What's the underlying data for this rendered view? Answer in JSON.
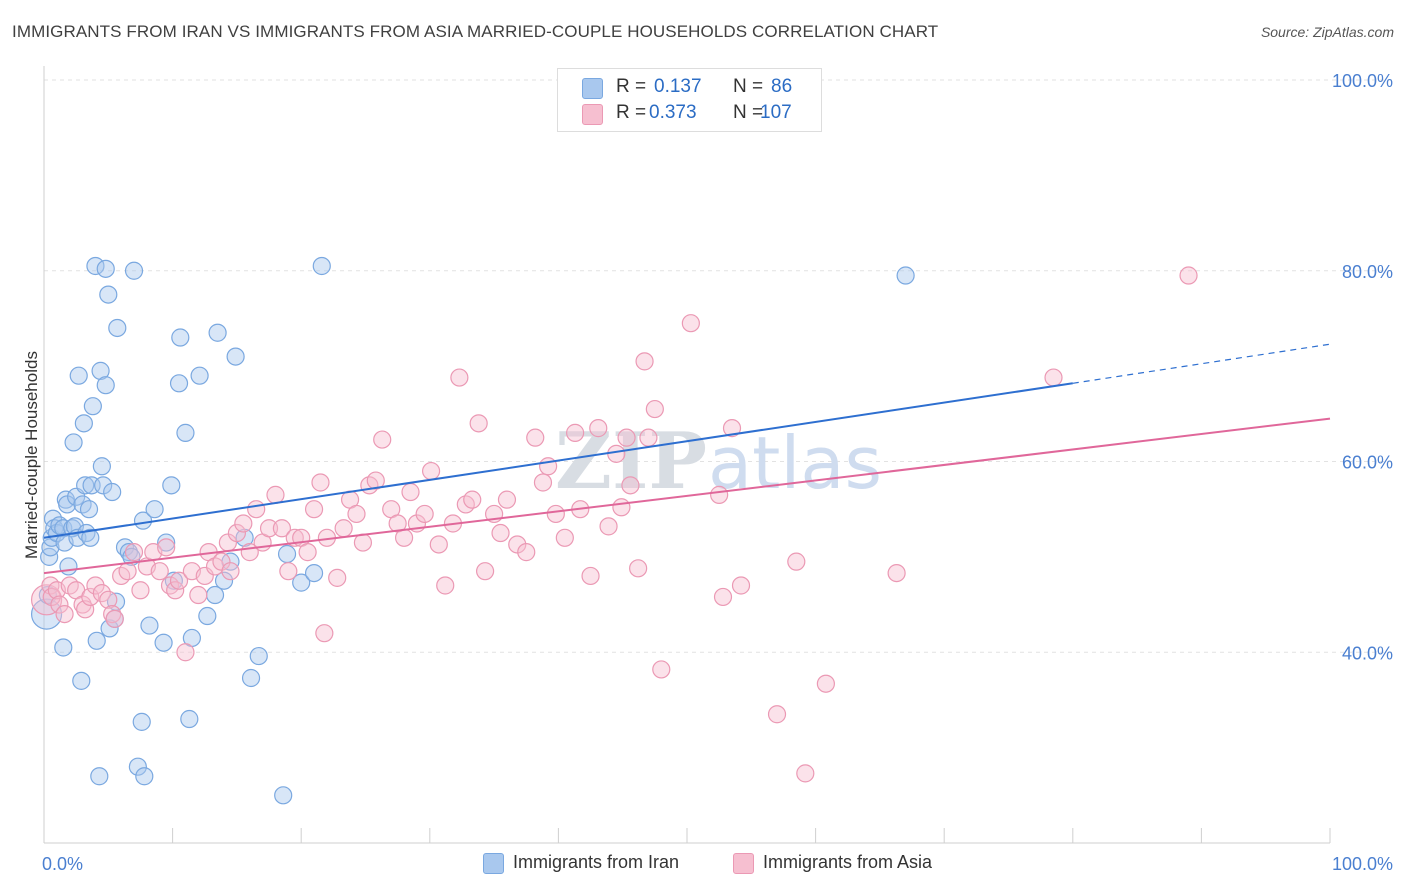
{
  "title": "IMMIGRANTS FROM IRAN VS IMMIGRANTS FROM ASIA MARRIED-COUPLE HOUSEHOLDS CORRELATION CHART",
  "source": "Source: ZipAtlas.com",
  "colors": {
    "blue_fill": "#a9c8ee",
    "blue_stroke": "#7aa8e0",
    "blue_line": "#2e6fd0",
    "pink_fill": "#f6bfd0",
    "pink_stroke": "#eb99b4",
    "pink_line": "#e0679a",
    "tick_text": "#4a7fd0"
  },
  "legend": {
    "rows": [
      {
        "r_label": "R =",
        "r_value": "0.137",
        "n_label": "N =",
        "n_value": "86"
      },
      {
        "r_label": "R =",
        "r_value": "0.373",
        "n_label": "N =",
        "n_value": "107"
      }
    ]
  },
  "bottom_legend": {
    "series1": "Immigrants from Iran",
    "series2": "Immigrants from Asia"
  },
  "watermark": {
    "zip": "ZIP",
    "atlas": "atlas"
  },
  "chart_data": {
    "type": "scatter",
    "ylabel": "Married-couple Households",
    "xlim": [
      0,
      100
    ],
    "ylim": [
      20,
      100
    ],
    "x_tick_labels": [
      "0.0%",
      "100.0%"
    ],
    "y_ticks": [
      {
        "value": 100,
        "label": "100.0%"
      },
      {
        "value": 80,
        "label": "80.0%"
      },
      {
        "value": 60,
        "label": "60.0%"
      },
      {
        "value": 40,
        "label": "40.0%"
      }
    ],
    "series": [
      {
        "name": "Immigrants from Iran",
        "trend": {
          "x0": 0,
          "y0": 52.0,
          "x1": 80,
          "y1": 68.2,
          "dash_to_x": 100,
          "dash_to_y": 72.3
        },
        "points": [
          [
            0.2,
            44.0
          ],
          [
            0.3,
            46.0
          ],
          [
            0.4,
            50.0
          ],
          [
            0.5,
            51.0
          ],
          [
            0.6,
            52.0
          ],
          [
            0.7,
            54.0
          ],
          [
            0.8,
            53.0
          ],
          [
            1.0,
            52.5
          ],
          [
            1.2,
            53.3
          ],
          [
            1.5,
            53.0
          ],
          [
            1.5,
            40.5
          ],
          [
            1.6,
            51.5
          ],
          [
            1.7,
            56.0
          ],
          [
            1.8,
            55.5
          ],
          [
            1.9,
            49.0
          ],
          [
            2.2,
            53.0
          ],
          [
            2.3,
            62.0
          ],
          [
            2.4,
            53.2
          ],
          [
            2.5,
            56.3
          ],
          [
            2.6,
            52.0
          ],
          [
            2.7,
            69.0
          ],
          [
            2.9,
            37.0
          ],
          [
            3.0,
            55.5
          ],
          [
            3.1,
            64.0
          ],
          [
            3.2,
            57.5
          ],
          [
            3.3,
            52.5
          ],
          [
            3.5,
            55.0
          ],
          [
            3.6,
            52.0
          ],
          [
            3.7,
            57.5
          ],
          [
            3.8,
            65.8
          ],
          [
            4.0,
            80.5
          ],
          [
            4.1,
            41.2
          ],
          [
            4.3,
            27.0
          ],
          [
            4.4,
            69.5
          ],
          [
            4.5,
            59.5
          ],
          [
            4.6,
            57.5
          ],
          [
            4.8,
            68.0
          ],
          [
            4.8,
            80.2
          ],
          [
            5.0,
            77.5
          ],
          [
            5.1,
            42.5
          ],
          [
            5.3,
            56.8
          ],
          [
            5.5,
            43.5
          ],
          [
            5.6,
            45.3
          ],
          [
            5.7,
            74.0
          ],
          [
            6.3,
            51.0
          ],
          [
            6.6,
            50.5
          ],
          [
            6.8,
            50.0
          ],
          [
            7.0,
            80.0
          ],
          [
            7.3,
            28.0
          ],
          [
            7.6,
            32.7
          ],
          [
            7.7,
            53.8
          ],
          [
            7.8,
            27.0
          ],
          [
            8.2,
            42.8
          ],
          [
            8.6,
            55.0
          ],
          [
            9.3,
            41.0
          ],
          [
            9.5,
            51.5
          ],
          [
            9.9,
            57.5
          ],
          [
            10.1,
            47.5
          ],
          [
            10.5,
            68.2
          ],
          [
            10.6,
            73.0
          ],
          [
            11.0,
            63.0
          ],
          [
            11.3,
            33.0
          ],
          [
            11.5,
            41.5
          ],
          [
            12.1,
            69.0
          ],
          [
            12.7,
            43.8
          ],
          [
            13.3,
            46.0
          ],
          [
            13.5,
            73.5
          ],
          [
            14.0,
            47.5
          ],
          [
            14.5,
            49.5
          ],
          [
            14.9,
            71.0
          ],
          [
            15.6,
            52.0
          ],
          [
            16.1,
            37.3
          ],
          [
            16.7,
            39.6
          ],
          [
            18.6,
            25.0
          ],
          [
            18.9,
            50.3
          ],
          [
            20.0,
            47.3
          ],
          [
            21.0,
            48.3
          ],
          [
            21.6,
            80.5
          ],
          [
            67.0,
            79.5
          ]
        ]
      },
      {
        "name": "Immigrants from Asia",
        "trend": {
          "x0": 0,
          "y0": 48.3,
          "x1": 100,
          "y1": 64.5
        },
        "points": [
          [
            0.2,
            45.5
          ],
          [
            0.5,
            47.0
          ],
          [
            0.6,
            45.8
          ],
          [
            1.0,
            46.5
          ],
          [
            1.2,
            45.0
          ],
          [
            1.6,
            44.0
          ],
          [
            2.0,
            47.0
          ],
          [
            2.5,
            46.5
          ],
          [
            3.0,
            45.0
          ],
          [
            3.2,
            44.5
          ],
          [
            3.6,
            45.8
          ],
          [
            4.0,
            47.0
          ],
          [
            4.5,
            46.2
          ],
          [
            5.0,
            45.5
          ],
          [
            5.3,
            44.0
          ],
          [
            5.5,
            43.5
          ],
          [
            6.0,
            48.0
          ],
          [
            6.5,
            48.5
          ],
          [
            7.0,
            50.5
          ],
          [
            7.5,
            46.5
          ],
          [
            8.0,
            49.0
          ],
          [
            8.5,
            50.5
          ],
          [
            9.0,
            48.5
          ],
          [
            9.5,
            51.0
          ],
          [
            9.8,
            47.0
          ],
          [
            10.2,
            46.5
          ],
          [
            10.5,
            47.5
          ],
          [
            11.0,
            40.0
          ],
          [
            11.5,
            48.5
          ],
          [
            12.0,
            46.0
          ],
          [
            12.5,
            48.0
          ],
          [
            12.8,
            50.5
          ],
          [
            13.3,
            49.0
          ],
          [
            13.8,
            49.5
          ],
          [
            14.3,
            51.5
          ],
          [
            14.5,
            48.5
          ],
          [
            15.0,
            52.5
          ],
          [
            15.5,
            53.5
          ],
          [
            16.0,
            50.5
          ],
          [
            16.5,
            55.0
          ],
          [
            17.0,
            51.5
          ],
          [
            17.5,
            53.0
          ],
          [
            18.0,
            56.5
          ],
          [
            18.5,
            53.0
          ],
          [
            19.0,
            48.5
          ],
          [
            19.5,
            52.0
          ],
          [
            20.0,
            52.0
          ],
          [
            20.5,
            50.5
          ],
          [
            21.0,
            55.0
          ],
          [
            21.5,
            57.8
          ],
          [
            21.8,
            42.0
          ],
          [
            22.0,
            52.0
          ],
          [
            22.8,
            47.8
          ],
          [
            23.3,
            53.0
          ],
          [
            23.8,
            56.0
          ],
          [
            24.3,
            54.5
          ],
          [
            24.8,
            51.5
          ],
          [
            25.3,
            57.5
          ],
          [
            25.8,
            58.0
          ],
          [
            26.3,
            62.3
          ],
          [
            27.0,
            55.0
          ],
          [
            27.5,
            53.5
          ],
          [
            28.0,
            52.0
          ],
          [
            28.5,
            56.8
          ],
          [
            29.0,
            53.5
          ],
          [
            29.6,
            54.5
          ],
          [
            30.1,
            59.0
          ],
          [
            30.7,
            51.3
          ],
          [
            31.2,
            47.0
          ],
          [
            31.8,
            53.5
          ],
          [
            32.3,
            68.8
          ],
          [
            32.8,
            55.5
          ],
          [
            33.3,
            56.0
          ],
          [
            33.8,
            64.0
          ],
          [
            34.3,
            48.5
          ],
          [
            35.0,
            54.5
          ],
          [
            35.5,
            52.5
          ],
          [
            36.0,
            56.0
          ],
          [
            36.8,
            51.3
          ],
          [
            37.5,
            50.5
          ],
          [
            38.2,
            62.5
          ],
          [
            38.8,
            57.8
          ],
          [
            39.2,
            59.5
          ],
          [
            39.8,
            54.5
          ],
          [
            40.5,
            52.0
          ],
          [
            41.3,
            63.0
          ],
          [
            41.7,
            55.0
          ],
          [
            42.5,
            48.0
          ],
          [
            43.1,
            63.5
          ],
          [
            43.9,
            53.2
          ],
          [
            44.5,
            60.8
          ],
          [
            44.9,
            55.2
          ],
          [
            45.3,
            62.5
          ],
          [
            45.6,
            57.5
          ],
          [
            46.2,
            48.8
          ],
          [
            46.7,
            70.5
          ],
          [
            47.0,
            62.5
          ],
          [
            47.5,
            65.5
          ],
          [
            48.0,
            38.2
          ],
          [
            50.3,
            74.5
          ],
          [
            52.5,
            56.5
          ],
          [
            52.8,
            45.8
          ],
          [
            53.5,
            63.5
          ],
          [
            54.2,
            47.0
          ],
          [
            57.0,
            33.5
          ],
          [
            58.5,
            49.5
          ],
          [
            59.2,
            27.3
          ],
          [
            60.8,
            36.7
          ],
          [
            66.3,
            48.3
          ],
          [
            78.5,
            68.8
          ],
          [
            89.0,
            79.5
          ]
        ]
      }
    ]
  }
}
